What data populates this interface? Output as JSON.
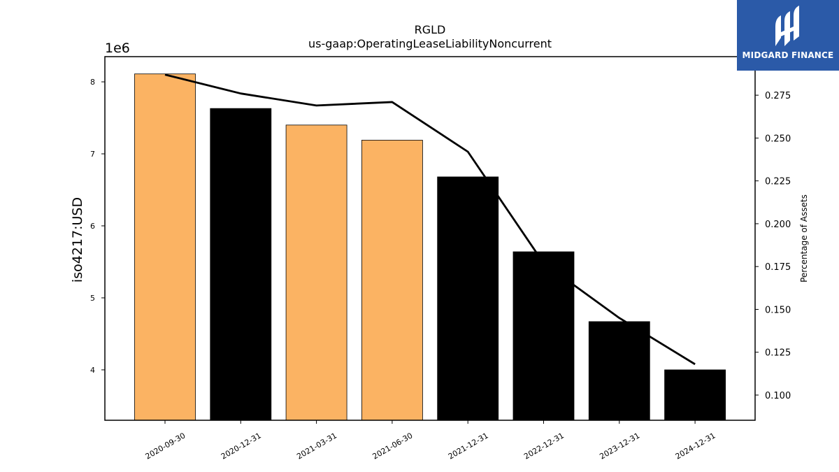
{
  "chart_data": {
    "type": "bar",
    "title": "RGLD",
    "subtitle": "us-gaap:OperatingLeaseLiabilityNoncurrent",
    "categories": [
      "2020-09-30",
      "2020-12-31",
      "2021-03-31",
      "2021-06-30",
      "2021-12-31",
      "2022-12-31",
      "2023-12-31",
      "2024-12-31"
    ],
    "bars": {
      "values": [
        8110000,
        7630000,
        7400000,
        7190000,
        6680000,
        5640000,
        4670000,
        4000000
      ],
      "colors": [
        "#fbb363",
        "#000000",
        "#fbb363",
        "#fbb363",
        "#000000",
        "#000000",
        "#000000",
        "#000000"
      ]
    },
    "line": {
      "values": [
        0.287,
        0.276,
        0.269,
        0.271,
        0.242,
        0.177,
        0.145,
        0.118
      ],
      "color": "#000000"
    },
    "ylabel": "iso4217:USD",
    "y_offset_label": "1e6",
    "ylim": [
      3300000,
      8350000
    ],
    "yticks": [
      4,
      5,
      6,
      7,
      8
    ],
    "y2label": "Percentage of Assets",
    "y2lim": [
      0.0853,
      0.2975
    ],
    "y2ticks": [
      "0.100",
      "0.125",
      "0.150",
      "0.175",
      "0.200",
      "0.225",
      "0.250",
      "0.275"
    ],
    "grid": false,
    "legend": "none"
  },
  "logo": {
    "text": "MIDGARD FINANCE",
    "background": "#2b5aa8"
  }
}
